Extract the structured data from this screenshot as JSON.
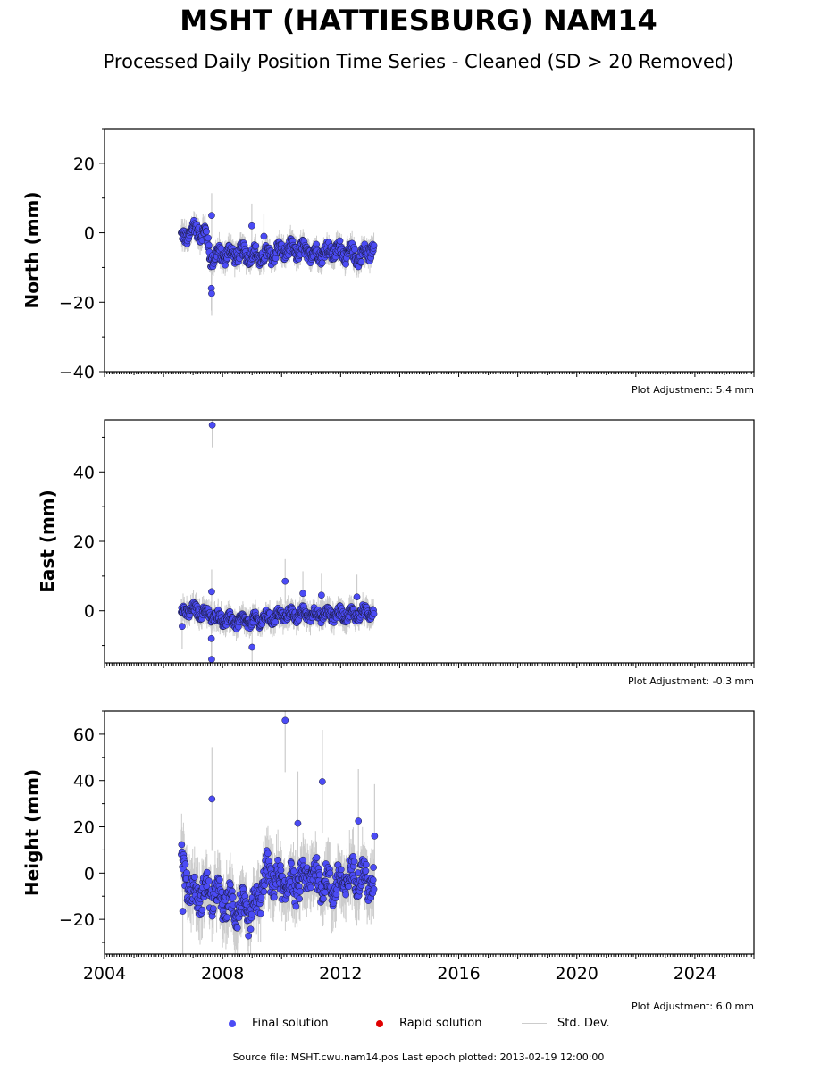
{
  "chart_data": {
    "type": "scatter",
    "title": "MSHT (HATTIESBURG) NAM14",
    "subtitle": "Processed Daily Position Time Series - Cleaned (SD > 20 Removed)",
    "xlim": [
      2004,
      2026
    ],
    "x_ticks": [
      "2004",
      "2008",
      "2012",
      "2016",
      "2020",
      "2024"
    ],
    "panels": [
      {
        "ylabel": "North (mm)",
        "ylim": [
          -40,
          30
        ],
        "y_ticks": [
          20,
          0,
          -20,
          -40
        ],
        "y_tick_labels": [
          "20",
          "0",
          "−20",
          "−40"
        ],
        "adjustment": "Plot Adjustment: 5.4 mm",
        "trend": [
          [
            2006.6,
            -2
          ],
          [
            2007.0,
            1
          ],
          [
            2007.4,
            0
          ],
          [
            2007.6,
            -7
          ],
          [
            2008.2,
            -6
          ],
          [
            2008.8,
            -6
          ],
          [
            2009.4,
            -7
          ],
          [
            2010.0,
            -5
          ],
          [
            2010.6,
            -5
          ],
          [
            2011.2,
            -6
          ],
          [
            2011.8,
            -5
          ],
          [
            2012.3,
            -6
          ],
          [
            2012.7,
            -7
          ],
          [
            2013.1,
            -4
          ]
        ],
        "spread": 4,
        "outliers": [
          [
            2007.63,
            5
          ],
          [
            2007.62,
            -16
          ],
          [
            2007.63,
            -17.5
          ],
          [
            2008.99,
            2
          ],
          [
            2009.4,
            -1
          ]
        ],
        "err_min": 1.5,
        "err_max": 4
      },
      {
        "ylabel": "East (mm)",
        "ylim": [
          -15,
          55
        ],
        "y_ticks": [
          40,
          20,
          0
        ],
        "y_tick_labels": [
          "40",
          "20",
          "0"
        ],
        "adjustment": "Plot Adjustment: -0.3 mm",
        "trend": [
          [
            2006.6,
            0
          ],
          [
            2007.2,
            0
          ],
          [
            2007.8,
            -2
          ],
          [
            2008.4,
            -3
          ],
          [
            2009.0,
            -3
          ],
          [
            2009.6,
            -2
          ],
          [
            2010.2,
            -1
          ],
          [
            2010.8,
            -1
          ],
          [
            2011.4,
            -1
          ],
          [
            2012.0,
            -1
          ],
          [
            2012.6,
            -1
          ],
          [
            2013.1,
            0
          ]
        ],
        "spread": 3,
        "outliers": [
          [
            2007.65,
            53.5
          ],
          [
            2007.63,
            5.5
          ],
          [
            2007.62,
            -8
          ],
          [
            2007.63,
            -14
          ],
          [
            2010.12,
            8.5
          ],
          [
            2010.72,
            5
          ],
          [
            2011.35,
            4.5
          ],
          [
            2012.55,
            4
          ],
          [
            2009.0,
            -10.5
          ],
          [
            2006.63,
            -4.5
          ]
        ],
        "err_min": 1.5,
        "err_max": 4
      },
      {
        "ylabel": "Height (mm)",
        "ylim": [
          -35,
          70
        ],
        "y_ticks": [
          60,
          40,
          20,
          0,
          -20
        ],
        "y_tick_labels": [
          "60",
          "40",
          "20",
          "0",
          "−20"
        ],
        "adjustment": "Plot Adjustment: 6.0 mm",
        "trend": [
          [
            2006.6,
            5
          ],
          [
            2007.0,
            -10
          ],
          [
            2007.5,
            -8
          ],
          [
            2008.0,
            -12
          ],
          [
            2008.5,
            -15
          ],
          [
            2009.0,
            -18
          ],
          [
            2009.5,
            0
          ],
          [
            2010.0,
            -5
          ],
          [
            2010.5,
            -5
          ],
          [
            2011.0,
            0
          ],
          [
            2011.5,
            -5
          ],
          [
            2012.0,
            -5
          ],
          [
            2012.5,
            0
          ],
          [
            2013.1,
            -5
          ]
        ],
        "spread": 12,
        "outliers": [
          [
            2010.12,
            66
          ],
          [
            2011.38,
            39.5
          ],
          [
            2007.64,
            32
          ],
          [
            2006.65,
            -16.5
          ],
          [
            2012.6,
            22.5
          ],
          [
            2013.15,
            16
          ],
          [
            2010.55,
            21.5
          ]
        ],
        "err_min": 5,
        "err_max": 14
      }
    ],
    "legend": [
      {
        "label": "Final solution",
        "color": "#4b4bf5"
      },
      {
        "label": "Rapid solution",
        "color": "#e00000"
      },
      {
        "label": "Std. Dev.",
        "color": "#cccccc"
      }
    ],
    "footer": "Source file: MSHT.cwu.nam14.pos  Last epoch plotted: 2013-02-19 12:00:00",
    "colors": {
      "final_point": "#4b4bf5",
      "point_edge": "#1a1a3a",
      "std_dev": "#cccccc",
      "axes": "#000000"
    }
  }
}
